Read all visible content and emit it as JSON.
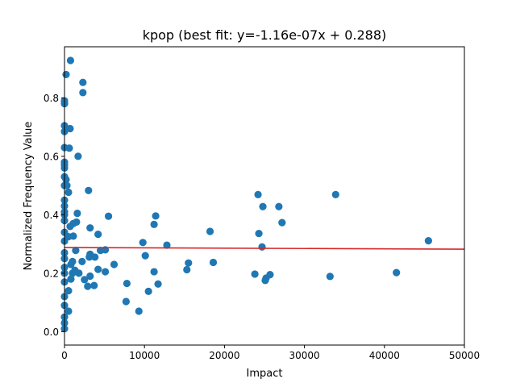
{
  "chart_data": {
    "type": "scatter",
    "title": "kpop (best fit: y=-1.16e-07x + 0.288)",
    "xlabel": "Impact",
    "ylabel": "Normalized Frequency Value",
    "xlim": [
      0,
      50000
    ],
    "ylim": [
      -0.046,
      0.975
    ],
    "xticks": [
      0,
      10000,
      20000,
      30000,
      40000,
      50000
    ],
    "xtick_labels": [
      "0",
      "10000",
      "20000",
      "30000",
      "40000",
      "50000"
    ],
    "yticks": [
      0.0,
      0.2,
      0.4,
      0.6,
      0.8
    ],
    "ytick_labels": [
      "0.0",
      "0.2",
      "0.4",
      "0.6",
      "0.8"
    ],
    "grid": false,
    "colors": {
      "points": "#1f77b4",
      "fit_line": "#d62728"
    },
    "fit": {
      "slope": -1.16e-07,
      "intercept": 0.288
    },
    "points": [
      [
        750,
        0.928
      ],
      [
        200,
        0.88
      ],
      [
        2300,
        0.853
      ],
      [
        2300,
        0.818
      ],
      [
        0,
        0.79
      ],
      [
        0,
        0.78
      ],
      [
        0,
        0.705
      ],
      [
        700,
        0.695
      ],
      [
        0,
        0.685
      ],
      [
        0,
        0.63
      ],
      [
        600,
        0.628
      ],
      [
        1700,
        0.6
      ],
      [
        0,
        0.58
      ],
      [
        0,
        0.57
      ],
      [
        0,
        0.56
      ],
      [
        0,
        0.53
      ],
      [
        200,
        0.52
      ],
      [
        0,
        0.5
      ],
      [
        300,
        0.5
      ],
      [
        500,
        0.477
      ],
      [
        3000,
        0.483
      ],
      [
        0,
        0.45
      ],
      [
        0,
        0.43
      ],
      [
        0,
        0.41
      ],
      [
        1600,
        0.405
      ],
      [
        0,
        0.4
      ],
      [
        5500,
        0.395
      ],
      [
        11400,
        0.396
      ],
      [
        0,
        0.38
      ],
      [
        1500,
        0.375
      ],
      [
        1100,
        0.37
      ],
      [
        700,
        0.36
      ],
      [
        11200,
        0.367
      ],
      [
        3200,
        0.355
      ],
      [
        0,
        0.34
      ],
      [
        4200,
        0.333
      ],
      [
        1100,
        0.327
      ],
      [
        500,
        0.325
      ],
      [
        0,
        0.31
      ],
      [
        9800,
        0.305
      ],
      [
        12800,
        0.296
      ],
      [
        1400,
        0.278
      ],
      [
        5100,
        0.28
      ],
      [
        4500,
        0.278
      ],
      [
        0,
        0.27
      ],
      [
        3200,
        0.265
      ],
      [
        3100,
        0.255
      ],
      [
        3800,
        0.255
      ],
      [
        10100,
        0.26
      ],
      [
        0,
        0.25
      ],
      [
        1000,
        0.24
      ],
      [
        2200,
        0.24
      ],
      [
        6200,
        0.23
      ],
      [
        800,
        0.23
      ],
      [
        0,
        0.22
      ],
      [
        4200,
        0.213
      ],
      [
        1300,
        0.21
      ],
      [
        11200,
        0.205
      ],
      [
        5100,
        0.205
      ],
      [
        0,
        0.2
      ],
      [
        1000,
        0.2
      ],
      [
        1800,
        0.2
      ],
      [
        3200,
        0.19
      ],
      [
        800,
        0.18
      ],
      [
        2500,
        0.178
      ],
      [
        0,
        0.17
      ],
      [
        7800,
        0.165
      ],
      [
        11700,
        0.163
      ],
      [
        2900,
        0.155
      ],
      [
        3700,
        0.158
      ],
      [
        10500,
        0.138
      ],
      [
        500,
        0.14
      ],
      [
        0,
        0.12
      ],
      [
        7700,
        0.103
      ],
      [
        0,
        0.09
      ],
      [
        9300,
        0.07
      ],
      [
        500,
        0.07
      ],
      [
        0,
        0.05
      ],
      [
        0,
        0.03
      ],
      [
        0,
        0.01
      ],
      [
        15500,
        0.235
      ],
      [
        15300,
        0.212
      ],
      [
        18200,
        0.343
      ],
      [
        18600,
        0.237
      ],
      [
        24200,
        0.469
      ],
      [
        24800,
        0.428
      ],
      [
        24300,
        0.336
      ],
      [
        24700,
        0.29
      ],
      [
        23800,
        0.197
      ],
      [
        25100,
        0.175
      ],
      [
        25200,
        0.183
      ],
      [
        25700,
        0.195
      ],
      [
        26800,
        0.428
      ],
      [
        27200,
        0.373
      ],
      [
        33900,
        0.469
      ],
      [
        33200,
        0.189
      ],
      [
        41500,
        0.202
      ],
      [
        45500,
        0.311
      ]
    ]
  }
}
